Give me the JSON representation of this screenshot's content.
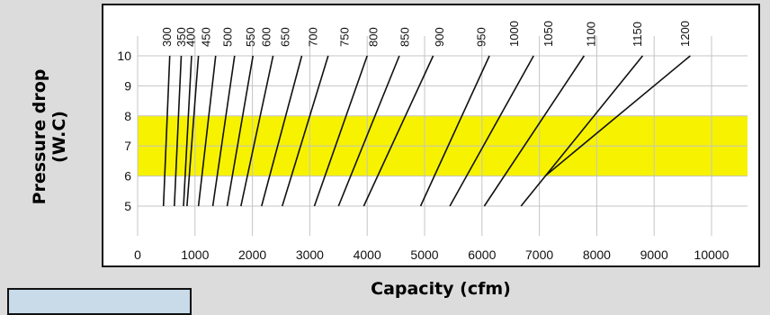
{
  "chart_data": {
    "type": "line",
    "title": "",
    "xlabel": "Capacity (cfm)",
    "ylabel_lines": [
      "Pressure drop",
      "(W.C)"
    ],
    "xlim": [
      0,
      10000
    ],
    "ylim": [
      4,
      10
    ],
    "x_ticks": [
      0,
      1000,
      2000,
      3000,
      4000,
      5000,
      6000,
      7000,
      8000,
      9000,
      10000
    ],
    "y_ticks": [
      5,
      6,
      7,
      8,
      9,
      10
    ],
    "grid": true,
    "highlight_band": {
      "y_from": 6,
      "y_to": 8,
      "color": "#f7f200"
    },
    "line_color": "#111111",
    "series": [
      {
        "name": "300",
        "x": [
          450,
          560
        ],
        "y": [
          5,
          10
        ]
      },
      {
        "name": "350",
        "x": [
          640,
          760
        ],
        "y": [
          5,
          10
        ]
      },
      {
        "name": "400",
        "x": [
          800,
          940
        ],
        "y": [
          5,
          10
        ]
      },
      {
        "name": "450",
        "x": [
          860,
          1060
        ],
        "y": [
          5,
          10
        ]
      },
      {
        "name": "500",
        "x": [
          1060,
          1360
        ],
        "y": [
          5,
          10
        ]
      },
      {
        "name": "550",
        "x": [
          1310,
          1690
        ],
        "y": [
          5,
          10
        ]
      },
      {
        "name": "600",
        "x": [
          1560,
          2010
        ],
        "y": [
          5,
          10
        ]
      },
      {
        "name": "650",
        "x": [
          1800,
          2360
        ],
        "y": [
          5,
          10
        ]
      },
      {
        "name": "700",
        "x": [
          2160,
          2860
        ],
        "y": [
          5,
          10
        ]
      },
      {
        "name": "750",
        "x": [
          2520,
          3320
        ],
        "y": [
          5,
          10
        ]
      },
      {
        "name": "800",
        "x": [
          3080,
          4000
        ],
        "y": [
          5,
          10
        ]
      },
      {
        "name": "850",
        "x": [
          3500,
          4560
        ],
        "y": [
          5,
          10
        ]
      },
      {
        "name": "900",
        "x": [
          3940,
          5150
        ],
        "y": [
          5,
          10
        ]
      },
      {
        "name": "950",
        "x": [
          4930,
          6130
        ],
        "y": [
          5,
          10
        ]
      },
      {
        "name": "1000",
        "x": [
          5440,
          6900
        ],
        "y": [
          5,
          10
        ]
      },
      {
        "name": "1050",
        "x": [
          6040,
          7780
        ],
        "y": [
          5,
          10
        ]
      },
      {
        "name": "1100",
        "x": [
          6680,
          8800
        ],
        "y": [
          5,
          10
        ]
      },
      {
        "name": "1150",
        "x": [
          7100,
          9630
        ],
        "y": [
          6,
          10
        ]
      }
    ],
    "top_labels": [
      {
        "text": "300",
        "x": 500
      },
      {
        "text": "350",
        "x": 750
      },
      {
        "text": "400",
        "x": 920
      },
      {
        "text": "450",
        "x": 1180
      },
      {
        "text": "500",
        "x": 1560
      },
      {
        "text": "550",
        "x": 1960
      },
      {
        "text": "600",
        "x": 2230
      },
      {
        "text": "650",
        "x": 2560
      },
      {
        "text": "700",
        "x": 3050
      },
      {
        "text": "750",
        "x": 3600
      },
      {
        "text": "800",
        "x": 4100
      },
      {
        "text": "850",
        "x": 4650
      },
      {
        "text": "900",
        "x": 5250
      },
      {
        "text": "950",
        "x": 5980
      },
      {
        "text": "1000",
        "x": 6550
      },
      {
        "text": "1050",
        "x": 7150
      },
      {
        "text": "1100",
        "x": 7890
      },
      {
        "text": "1150",
        "x": 8700
      },
      {
        "text": "1200",
        "x": 9530
      }
    ]
  }
}
